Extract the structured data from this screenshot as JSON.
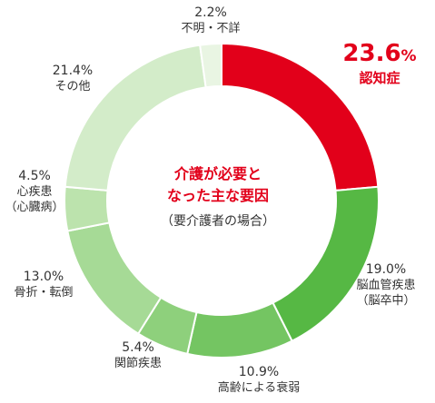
{
  "chart_data": {
    "type": "pie",
    "title": "介護が必要となった主な要因",
    "title_lines": [
      "介護が必要と",
      "なった主な要因"
    ],
    "subtitle": "（要介護者の場合）",
    "unit": "%",
    "slices": [
      {
        "name": "認知症",
        "name_lines": [
          "認知症"
        ],
        "value": 23.6,
        "value_text": "23.6",
        "color": "#e2001a",
        "highlight": true
      },
      {
        "name": "脳血管疾患（脳卒中）",
        "name_lines": [
          "脳血管疾患",
          "（脳卒中）"
        ],
        "value": 19.0,
        "value_text": "19.0%",
        "color": "#56b844"
      },
      {
        "name": "高齢による衰弱",
        "name_lines": [
          "高齢による衰弱"
        ],
        "value": 10.9,
        "value_text": "10.9%",
        "color": "#74c562"
      },
      {
        "name": "関節疾患",
        "name_lines": [
          "関節疾患"
        ],
        "value": 5.4,
        "value_text": "5.4%",
        "color": "#8ed07c"
      },
      {
        "name": "骨折・転倒",
        "name_lines": [
          "骨折・転倒"
        ],
        "value": 13.0,
        "value_text": "13.0%",
        "color": "#a6da96"
      },
      {
        "name": "心疾患（心臓病）",
        "name_lines": [
          "心疾患",
          "（心臓病）"
        ],
        "value": 4.5,
        "value_text": "4.5%",
        "color": "#bce3ad"
      },
      {
        "name": "その他",
        "name_lines": [
          "その他"
        ],
        "value": 21.4,
        "value_text": "21.4%",
        "color": "#d3ecc9"
      },
      {
        "name": "不明・不詳",
        "name_lines": [
          "不明・不詳"
        ],
        "value": 2.2,
        "value_text": "2.2%",
        "color": "#e9f5e3"
      }
    ]
  }
}
